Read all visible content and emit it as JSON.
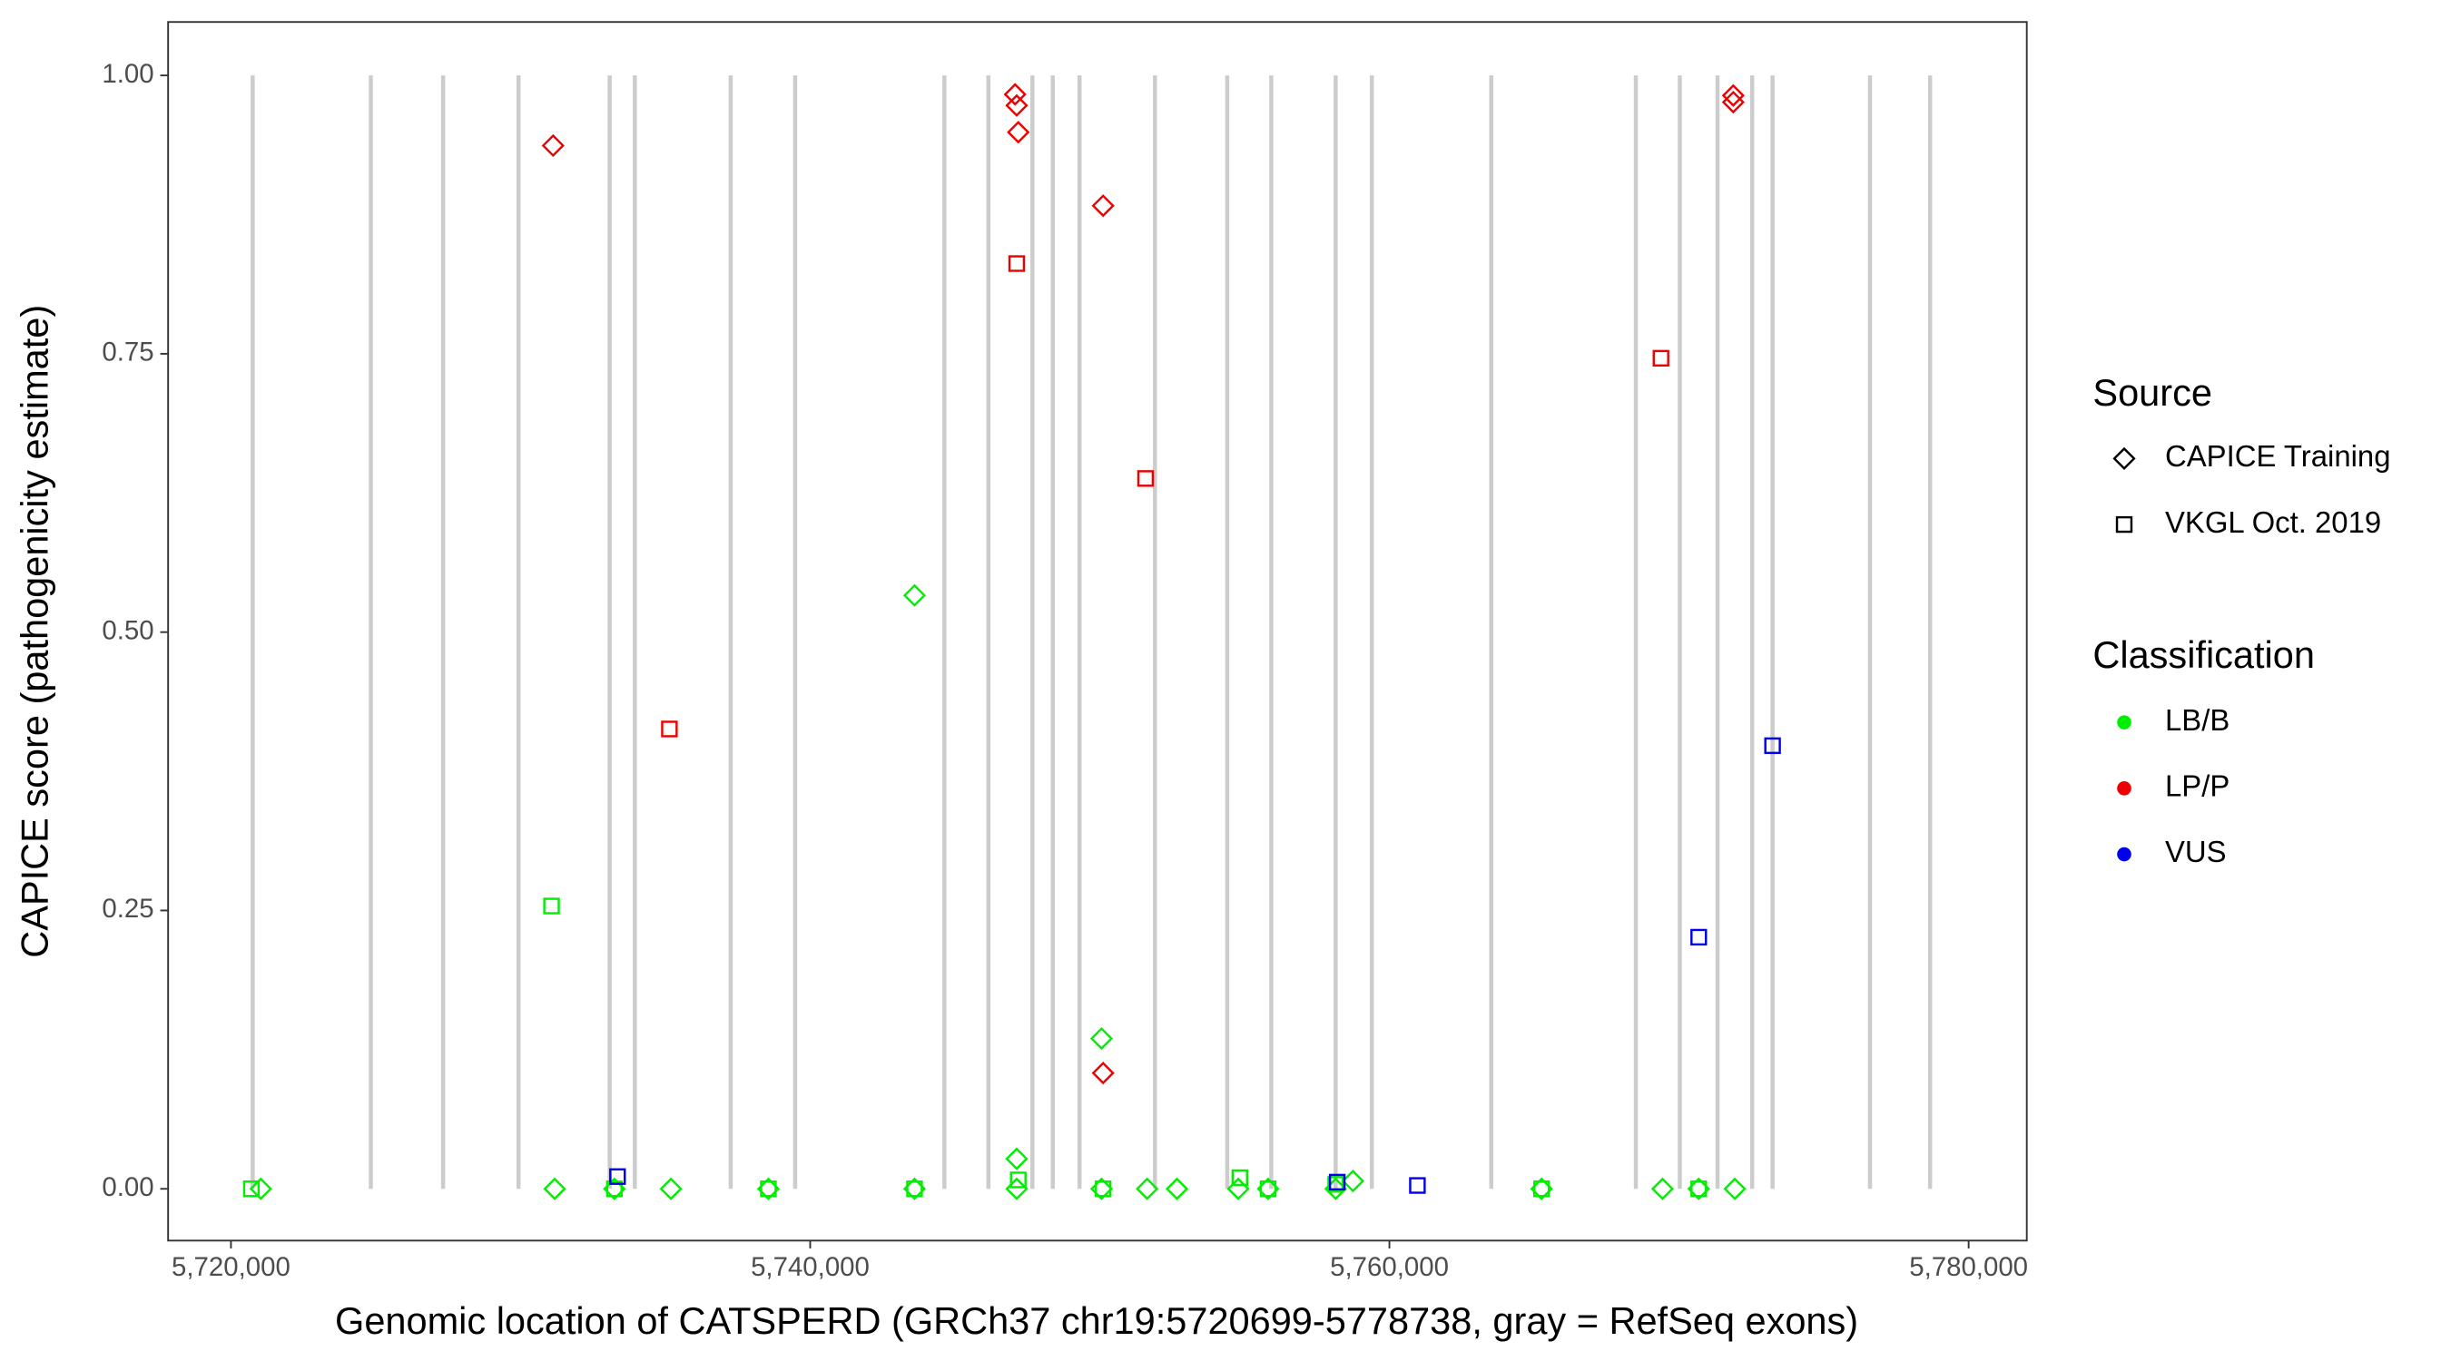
{
  "chart_data": {
    "type": "scatter",
    "x_label": "Genomic location of CATSPERD (GRCh37 chr19:5720699-5778738, gray = RefSeq exons)",
    "y_label": "CAPICE score (pathogenicity estimate)",
    "xlim": [
      5717830,
      5782008
    ],
    "ylim": [
      -0.0465,
      1.048
    ],
    "xticks": [
      {
        "value": 5720000,
        "label": "5,720,000"
      },
      {
        "value": 5740000,
        "label": "5,740,000"
      },
      {
        "value": 5760000,
        "label": "5,760,000"
      },
      {
        "value": 5780000,
        "label": "5,780,000"
      }
    ],
    "yticks": [
      {
        "value": 0,
        "label": "0.00"
      },
      {
        "value": 0.25,
        "label": "0.25"
      },
      {
        "value": 0.5,
        "label": "0.50"
      },
      {
        "value": 0.75,
        "label": "0.75"
      },
      {
        "value": 1,
        "label": "1.00"
      }
    ],
    "exon_color": "#cccccc",
    "exons": [
      [
        5720699,
        5720800
      ],
      [
        5724780,
        5724880
      ],
      [
        5727275,
        5727375
      ],
      [
        5729880,
        5729980
      ],
      [
        5733027,
        5733127
      ],
      [
        5733880,
        5734010
      ],
      [
        5737205,
        5737305
      ],
      [
        5739430,
        5739530
      ],
      [
        5744584,
        5744684
      ],
      [
        5746104,
        5746204
      ],
      [
        5747623,
        5747723
      ],
      [
        5748328,
        5748428
      ],
      [
        5749250,
        5749350
      ],
      [
        5751840,
        5751970
      ],
      [
        5754351,
        5754451
      ],
      [
        5755870,
        5755970
      ],
      [
        5758095,
        5758195
      ],
      [
        5759343,
        5759443
      ],
      [
        5763467,
        5763567
      ],
      [
        5768459,
        5768559
      ],
      [
        5769978,
        5770078
      ],
      [
        5771280,
        5771380
      ],
      [
        5772460,
        5772590
      ],
      [
        5773180,
        5773280
      ],
      [
        5776544,
        5776644
      ],
      [
        5778600,
        5778738
      ]
    ],
    "source_legend": {
      "title": "Source",
      "entries": [
        {
          "name": "CAPICE Training",
          "shape": "diamond"
        },
        {
          "name": "VKGL Oct. 2019",
          "shape": "square"
        }
      ]
    },
    "class_legend": {
      "title": "Classification",
      "entries": [
        {
          "name": "LB/B",
          "color": "#00ee00"
        },
        {
          "name": "LP/P",
          "color": "#ee0000"
        },
        {
          "name": "VUS",
          "color": "#0000ee"
        }
      ]
    },
    "series": [
      {
        "source": "CAPICE Training",
        "classification": "LB/B",
        "x": [
          5721031,
          5731178,
          5733239,
          5735193,
          5738557,
          5743603,
          5743603,
          5747130,
          5747130,
          5750060,
          5750060,
          5751634,
          5752665,
          5754781,
          5755812,
          5758145,
          5758742,
          5765254,
          5769431,
          5770680,
          5771927
        ],
        "values": [
          0,
          0,
          0,
          0,
          0,
          0,
          0.533,
          0,
          0.027,
          0,
          0.135,
          0,
          0,
          0,
          0,
          0,
          0.007,
          0,
          0,
          0,
          0
        ]
      },
      {
        "source": "VKGL Oct. 2019",
        "classification": "LB/B",
        "x": [
          5720705,
          5731069,
          5733239,
          5738557,
          5743603,
          5747185,
          5750115,
          5754836,
          5755812,
          5758145,
          5765254,
          5770680
        ],
        "values": [
          0,
          0.254,
          0,
          0,
          0,
          0.008,
          0,
          0.01,
          0,
          0.004,
          0,
          0
        ]
      },
      {
        "source": "CAPICE Training",
        "classification": "LP/P",
        "x": [
          5731123,
          5747076,
          5747130,
          5747185,
          5750115,
          5750115,
          5771873,
          5771873
        ],
        "values": [
          0.937,
          0.983,
          0.973,
          0.949,
          0.883,
          0.104,
          0.982,
          0.976
        ]
      },
      {
        "source": "VKGL Oct. 2019",
        "classification": "LP/P",
        "x": [
          5735139,
          5747130,
          5751580,
          5769377
        ],
        "values": [
          0.413,
          0.831,
          0.638,
          0.746
        ]
      },
      {
        "source": "VKGL Oct. 2019",
        "classification": "VUS",
        "x": [
          5733348,
          5758199,
          5760967,
          5770680,
          5773230
        ],
        "values": [
          0.011,
          0.006,
          0.003,
          0.226,
          0.398
        ]
      }
    ]
  }
}
